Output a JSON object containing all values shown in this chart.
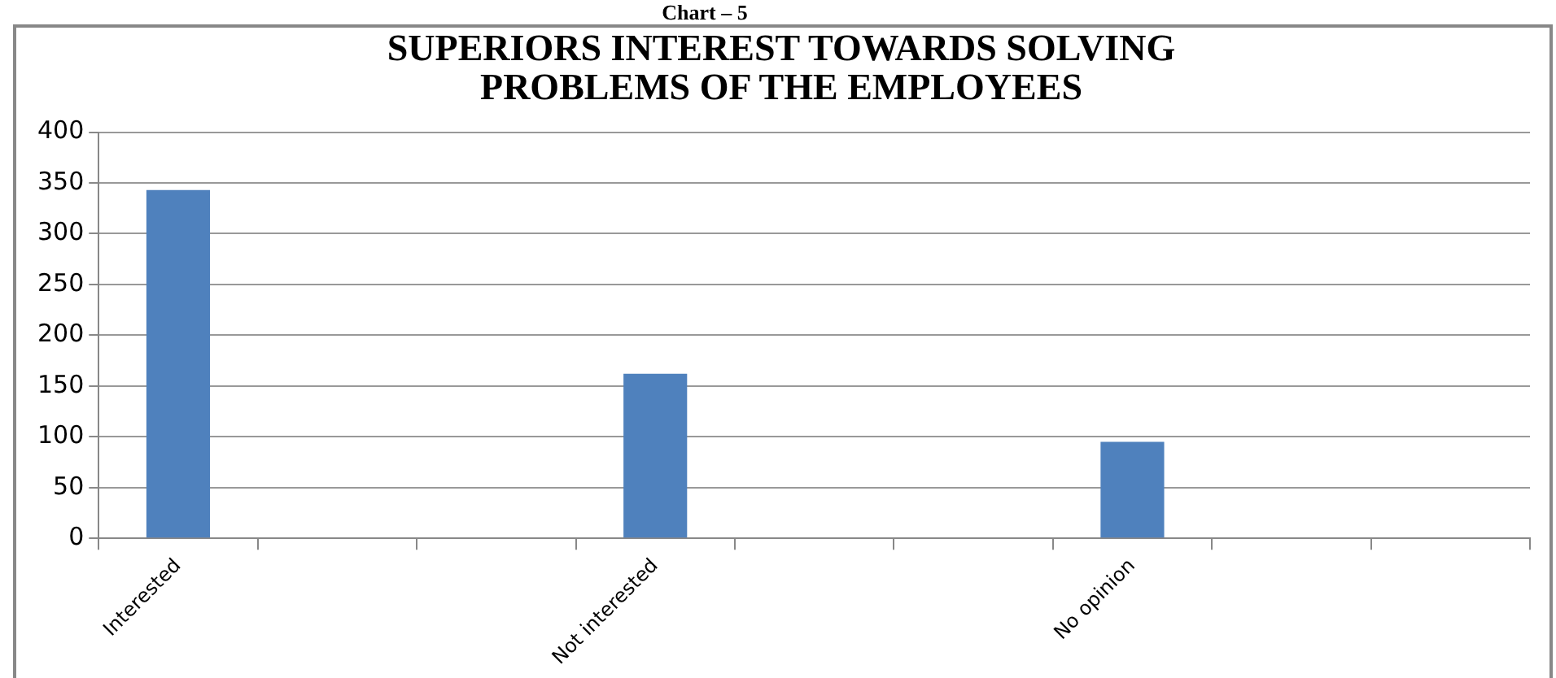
{
  "chart_data": {
    "type": "bar",
    "title": [
      "SUPERIORS INTEREST TOWARDS SOLVING",
      "PROBLEMS OF THE EMPLOYEES"
    ],
    "annotations": [
      "Chart – 5"
    ],
    "categories": [
      "Interested",
      null,
      null,
      "Not interested",
      null,
      null,
      "No opinion",
      null,
      null
    ],
    "values": [
      343,
      null,
      null,
      162,
      null,
      null,
      95,
      null,
      null
    ],
    "color": "#4f81bd",
    "ylim": [
      0,
      400
    ],
    "yticks": [
      0,
      50,
      100,
      150,
      200,
      250,
      300,
      350,
      400
    ],
    "grid": "y"
  }
}
